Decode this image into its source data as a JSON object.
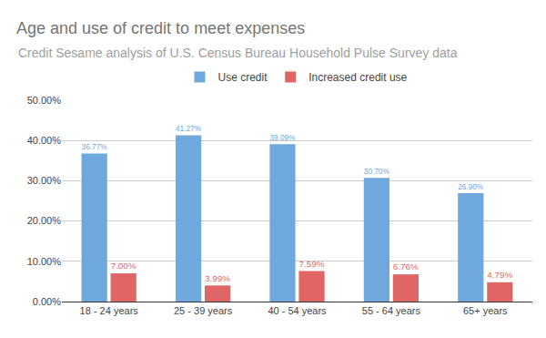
{
  "chart_data": {
    "type": "bar",
    "title": "Age and use of credit to meet expenses",
    "subtitle": "Credit Sesame analysis of U.S. Census Bureau Household Pulse Survey data",
    "categories": [
      "18 - 24 years",
      "25 - 39 years",
      "40 - 54 years",
      "55 - 64 years",
      "65+ years"
    ],
    "series": [
      {
        "name": "Use credit",
        "color": "#6fa8dc",
        "values": [
          36.77,
          41.27,
          39.09,
          30.7,
          26.9
        ],
        "value_labels": [
          "36.77%",
          "41.27%",
          "39.09%",
          "30.70%",
          "26.90%"
        ]
      },
      {
        "name": "Increased credit use",
        "color": "#e06666",
        "values": [
          7.0,
          3.99,
          7.59,
          6.76,
          4.79
        ],
        "value_labels": [
          "7.00%",
          "3.99%",
          "7.59%",
          "6.76%",
          "4.79%"
        ]
      }
    ],
    "ylim": [
      0,
      50
    ],
    "yticks": [
      {
        "value": 0,
        "label": "0.00%"
      },
      {
        "value": 10,
        "label": "10.00%"
      },
      {
        "value": 20,
        "label": "20.00%"
      },
      {
        "value": 30,
        "label": "30.00%"
      },
      {
        "value": 40,
        "label": "40.00%"
      },
      {
        "value": 50,
        "label": "50.00%"
      }
    ],
    "grid": true,
    "legend": "top",
    "data_labels": true
  }
}
